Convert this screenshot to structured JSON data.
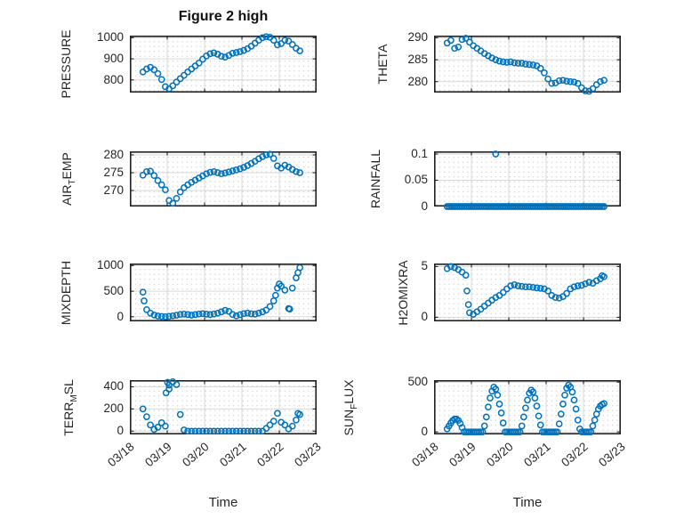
{
  "figure_title": "Figure 2 high",
  "x_axis": {
    "label": "Time",
    "tick_labels": [
      "03/18",
      "03/19",
      "03/20",
      "03/21",
      "03/22",
      "03/23"
    ],
    "tick_positions_days": [
      0,
      1,
      2,
      3,
      4,
      5
    ],
    "xlim_days": [
      0,
      5
    ]
  },
  "style": {
    "marker_color": "#0072BD",
    "axis_color": "#212121",
    "grid_color": "#d9d9d9",
    "minor_dot_color": "#d0d0d0",
    "text_color": "#262626",
    "background": "#ffffff",
    "marker": "open-circle"
  },
  "chart_data": [
    {
      "type": "scatter",
      "name": "PRESSURE",
      "ylabel": "PRESSURE",
      "ylim": [
        740,
        1010
      ],
      "yticks": [
        800,
        900,
        1000
      ],
      "x_unit": "days since 03/18",
      "series": {
        "t0": 0.35,
        "dt": 0.1,
        "values": [
          838,
          852,
          860,
          848,
          830,
          802,
          768,
          758,
          772,
          790,
          806,
          822,
          838,
          852,
          866,
          880,
          898,
          914,
          924,
          928,
          922,
          912,
          908,
          916,
          926,
          930,
          934,
          940,
          948,
          960,
          974,
          988,
          1000,
          1005,
          1002,
          988,
          966,
          972,
          988,
          984,
          968,
          950,
          938
        ]
      },
      "extra_points": []
    },
    {
      "type": "scatter",
      "name": "THETA",
      "ylabel": "THETA",
      "ylim": [
        277.5,
        290.5
      ],
      "yticks": [
        280,
        285,
        290
      ],
      "x_unit": "days since 03/18",
      "series": {
        "t0": 0.35,
        "dt": 0.1,
        "values": [
          288.8,
          289.4,
          287.6,
          287.9,
          289.6,
          289.9,
          289.0,
          288.2,
          287.6,
          287.0,
          286.4,
          285.9,
          285.4,
          285.0,
          284.7,
          284.5,
          284.4,
          284.5,
          284.3,
          284.2,
          284.2,
          284.0,
          283.9,
          283.8,
          283.6,
          283.0,
          282.0,
          280.6,
          279.6,
          279.7,
          280.2,
          280.3,
          280.1,
          280.0,
          279.9,
          279.6,
          278.6,
          277.9,
          277.8,
          278.4,
          279.3,
          280.0,
          280.3
        ]
      },
      "extra_points": []
    },
    {
      "type": "scatter",
      "name": "AIR_TEMP",
      "ylabel": "AIR_TEMP",
      "ylim": [
        265.5,
        281
      ],
      "yticks": [
        270,
        275,
        280
      ],
      "x_unit": "days since 03/18",
      "series": {
        "t0": 0.35,
        "dt": 0.1,
        "values": [
          274.3,
          275.3,
          275.4,
          274.2,
          272.8,
          271.6,
          270.2,
          267.2,
          266.4,
          267.8,
          269.6,
          270.8,
          271.6,
          272.3,
          272.9,
          273.5,
          274.1,
          274.7,
          275.1,
          275.3,
          275.0,
          274.7,
          274.9,
          275.2,
          275.5,
          275.8,
          276.1,
          276.5,
          277.0,
          277.6,
          278.2,
          278.9,
          279.5,
          280.0,
          280.2,
          279.0,
          276.9,
          276.3,
          277.1,
          276.6,
          275.9,
          275.3,
          275.0
        ]
      },
      "extra_points": []
    },
    {
      "type": "scatter",
      "name": "RAINFALL",
      "ylabel": "RAINFALL",
      "ylim": [
        0,
        0.105
      ],
      "yticks": [
        0,
        0.05,
        0.1
      ],
      "x_unit": "days since 03/18",
      "series": {
        "t0": 0.35,
        "dt": 0.05,
        "values": [
          0,
          0,
          0,
          0,
          0,
          0,
          0,
          0,
          0,
          0,
          0,
          0,
          0,
          0,
          0,
          0,
          0,
          0,
          0,
          0,
          0,
          0,
          0,
          0,
          0,
          0,
          0,
          0,
          0,
          0,
          0,
          0,
          0,
          0,
          0,
          0,
          0,
          0,
          0,
          0,
          0,
          0,
          0,
          0,
          0,
          0,
          0,
          0,
          0,
          0,
          0,
          0,
          0,
          0,
          0,
          0,
          0,
          0,
          0,
          0,
          0,
          0,
          0,
          0,
          0,
          0,
          0,
          0,
          0,
          0,
          0,
          0,
          0,
          0,
          0,
          0,
          0,
          0,
          0,
          0,
          0,
          0,
          0,
          0,
          0
        ]
      },
      "extra_points": [
        [
          1.65,
          0.1
        ]
      ]
    },
    {
      "type": "scatter",
      "name": "MIXDEPTH",
      "ylabel": "MIXDEPTH",
      "ylim": [
        -90,
        1040
      ],
      "yticks": [
        0,
        500,
        1000
      ],
      "x_unit": "days since 03/18",
      "series": {
        "t0": 0.35,
        "dt": 0.1,
        "values": [
          480,
          140,
          70,
          35,
          15,
          5,
          0,
          8,
          18,
          30,
          45,
          52,
          42,
          32,
          42,
          55,
          62,
          50,
          42,
          55,
          70,
          95,
          125,
          105,
          45,
          18,
          40,
          62,
          72,
          58,
          50,
          72,
          95,
          130,
          200,
          310,
          560,
          600,
          520,
          160,
          560,
          760,
          960
        ]
      },
      "extra_points": [
        [
          0.38,
          310
        ],
        [
          3.9,
          420
        ],
        [
          4.0,
          640
        ],
        [
          4.28,
          150
        ],
        [
          4.5,
          860
        ]
      ]
    },
    {
      "type": "scatter",
      "name": "H2OMIXRA",
      "ylabel": "H2OMIXRA",
      "ylim": [
        -0.4,
        5.3
      ],
      "yticks": [
        0,
        5
      ],
      "x_unit": "days since 03/18",
      "series": {
        "t0": 0.35,
        "dt": 0.1,
        "values": [
          4.8,
          5.0,
          4.9,
          4.7,
          4.45,
          4.15,
          0.45,
          0.3,
          0.55,
          0.8,
          1.1,
          1.4,
          1.7,
          1.95,
          2.15,
          2.45,
          2.8,
          3.1,
          3.2,
          3.1,
          3.05,
          3.0,
          3.0,
          2.95,
          2.9,
          2.85,
          2.8,
          2.6,
          2.15,
          1.95,
          1.9,
          2.05,
          2.35,
          2.8,
          3.0,
          3.1,
          3.15,
          3.3,
          3.45,
          3.35,
          3.6,
          3.8,
          4.0
        ]
      },
      "extra_points": [
        [
          0.88,
          2.6
        ],
        [
          0.92,
          1.25
        ],
        [
          4.5,
          4.1
        ]
      ]
    },
    {
      "type": "scatter",
      "name": "TERR_MSL",
      "ylabel": "TERR_MSL",
      "ylim": [
        -30,
        460
      ],
      "yticks": [
        0,
        200,
        400
      ],
      "x_unit": "days since 03/18",
      "series": {
        "t0": 0.35,
        "dt": 0.1,
        "values": [
          200,
          130,
          55,
          15,
          35,
          75,
          45,
          380,
          445,
          420,
          150,
          10,
          0,
          0,
          0,
          0,
          0,
          0,
          0,
          0,
          0,
          0,
          0,
          0,
          0,
          0,
          0,
          0,
          0,
          0,
          0,
          0,
          0,
          25,
          55,
          90,
          160,
          80,
          55,
          20,
          45,
          100,
          150
        ]
      },
      "extra_points": [
        [
          0.97,
          345
        ],
        [
          1.01,
          440
        ],
        [
          1.05,
          415
        ],
        [
          4.5,
          160
        ]
      ]
    },
    {
      "type": "scatter",
      "name": "SUN_FLUX",
      "ylabel": "SUN_FLUX",
      "ylim": [
        -25,
        520
      ],
      "yticks": [
        0,
        500
      ],
      "x_unit": "days since 03/18",
      "series": {
        "t0": 0.35,
        "dt": 0.05,
        "values": [
          30,
          60,
          90,
          115,
          130,
          130,
          115,
          85,
          45,
          0,
          0,
          0,
          0,
          0,
          0,
          0,
          0,
          0,
          0,
          0,
          60,
          150,
          250,
          340,
          410,
          450,
          430,
          370,
          280,
          190,
          90,
          0,
          0,
          0,
          0,
          0,
          0,
          0,
          0,
          0,
          60,
          150,
          240,
          320,
          390,
          420,
          400,
          340,
          260,
          160,
          70,
          0,
          0,
          0,
          0,
          0,
          0,
          0,
          0,
          0,
          80,
          180,
          280,
          370,
          440,
          470,
          450,
          400,
          320,
          230,
          120,
          30,
          0,
          0,
          0,
          0,
          0,
          0,
          60,
          120,
          180,
          230,
          260,
          275,
          285
        ]
      },
      "extra_points": []
    }
  ]
}
